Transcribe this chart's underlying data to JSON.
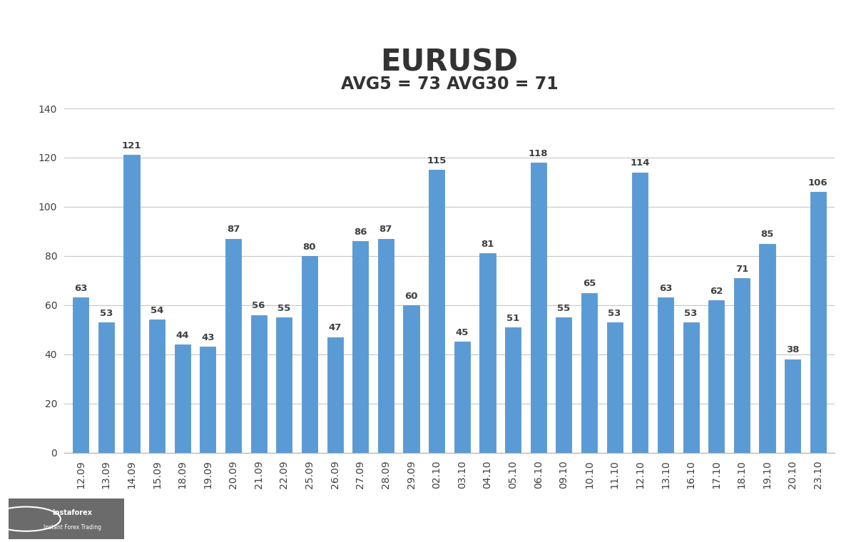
{
  "title": "EURUSD",
  "subtitle": "AVG5 = 73 AVG30 = 71",
  "categories": [
    "12.09",
    "13.09",
    "14.09",
    "15.09",
    "18.09",
    "19.09",
    "20.09",
    "21.09",
    "22.09",
    "25.09",
    "26.09",
    "27.09",
    "28.09",
    "29.09",
    "02.10",
    "03.10",
    "04.10",
    "05.10",
    "06.10",
    "09.10",
    "10.10",
    "11.10",
    "12.10",
    "13.10",
    "16.10",
    "17.10",
    "18.10",
    "19.10",
    "20.10",
    "23.10"
  ],
  "values": [
    63,
    53,
    121,
    54,
    44,
    43,
    87,
    56,
    55,
    80,
    47,
    86,
    87,
    60,
    115,
    45,
    81,
    51,
    118,
    55,
    65,
    53,
    114,
    63,
    53,
    62,
    71,
    85,
    38,
    106
  ],
  "bar_color": "#5B9BD5",
  "bar_edge_color": "#4A8AC4",
  "background_color": "#FFFFFF",
  "grid_color": "#C8C8C8",
  "title_fontsize": 30,
  "subtitle_fontsize": 17,
  "tick_fontsize": 10,
  "value_fontsize": 9.5,
  "ylim": [
    0,
    140
  ],
  "yticks": [
    0,
    20,
    40,
    60,
    80,
    100,
    120,
    140
  ]
}
